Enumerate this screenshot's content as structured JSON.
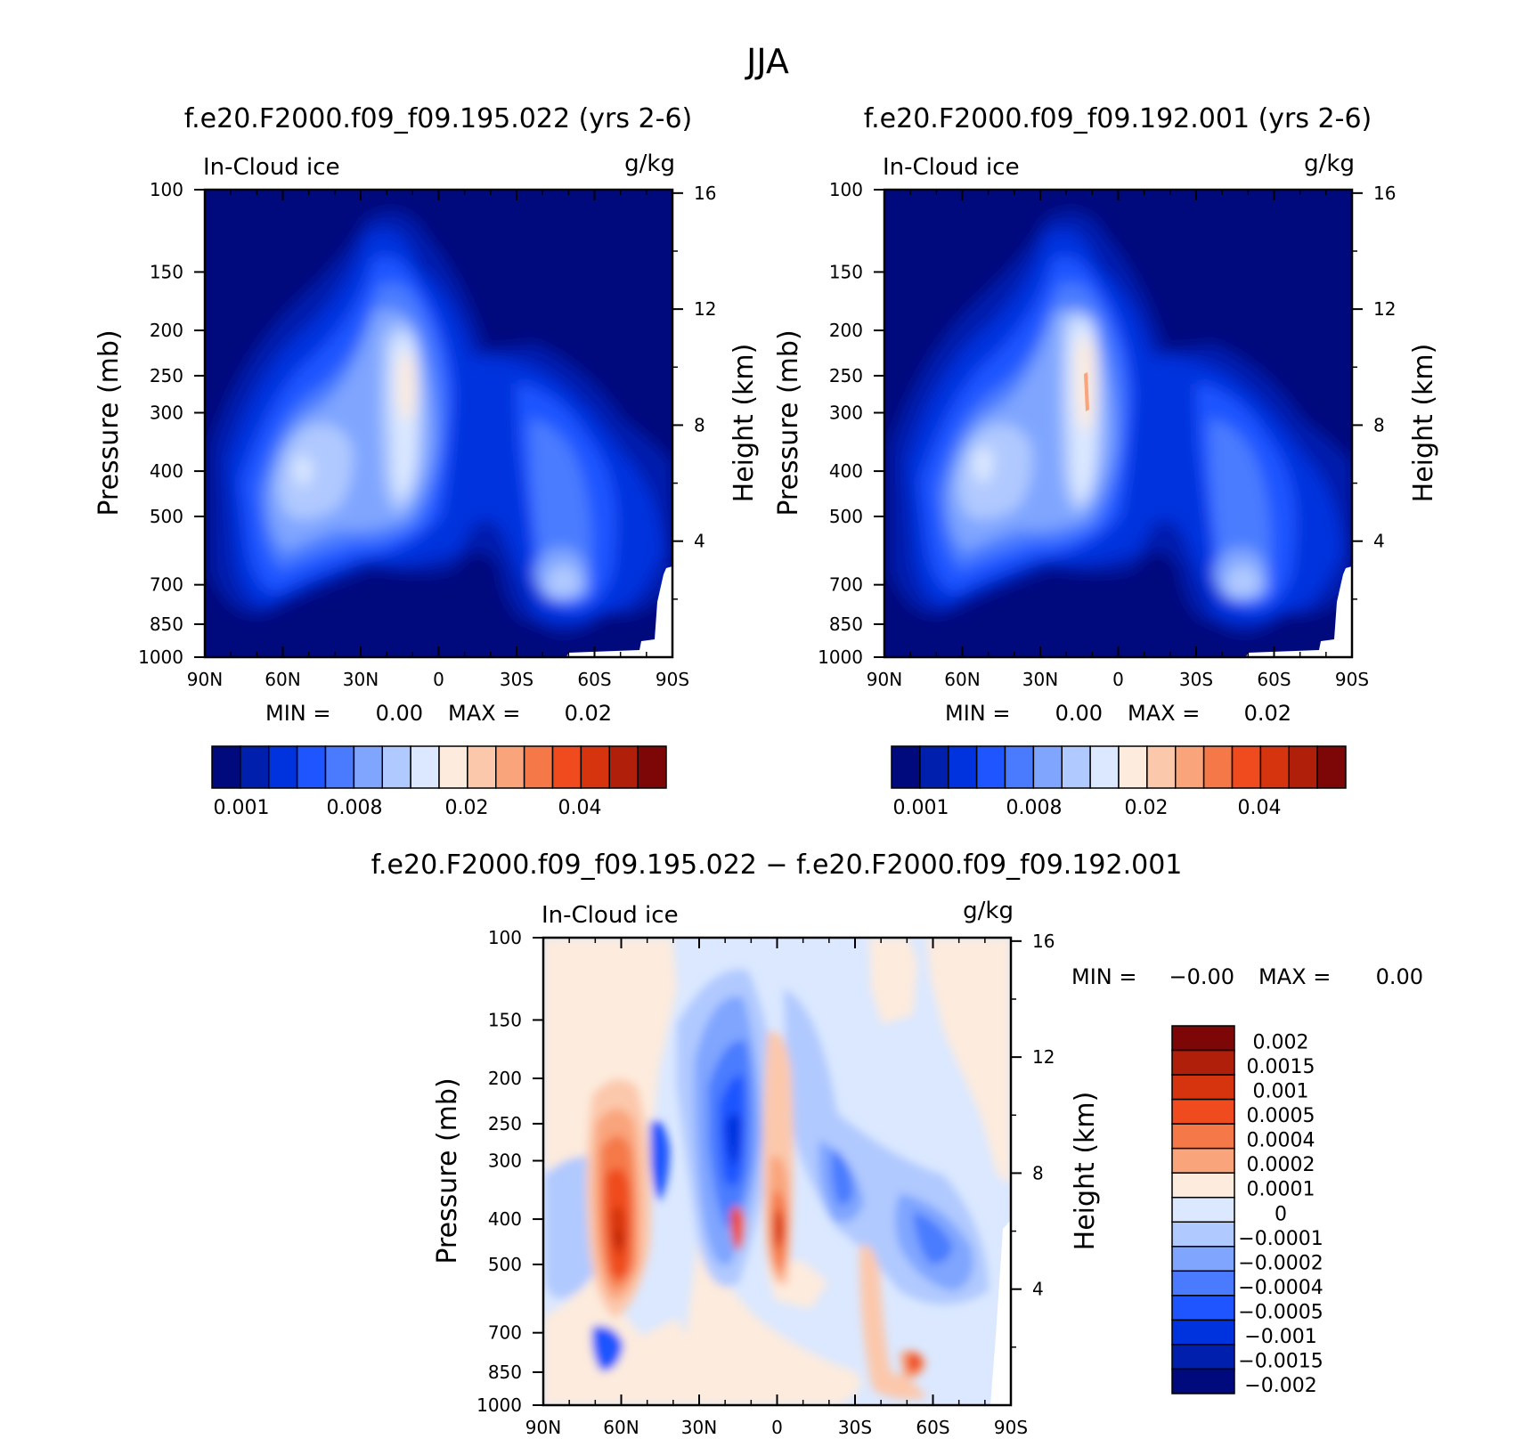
{
  "title": "JJA",
  "colors": {
    "control_levels": [
      "#000a7d",
      "#001fad",
      "#0033dd",
      "#1f55ff",
      "#4a7bff",
      "#7fa5ff",
      "#b0c9ff",
      "#dbe8ff",
      "#fdebdd",
      "#fcc8ac",
      "#f9a47b",
      "#f57948",
      "#ef4b1f",
      "#d5340f",
      "#b01f0a",
      "#7d0707"
    ],
    "diff_levels": [
      "#7d0707",
      "#b01f0a",
      "#d5340f",
      "#ef4b1f",
      "#f57948",
      "#f9a47b",
      "#fdebdd",
      "#dbe8ff",
      "#b0c9ff",
      "#7fa5ff",
      "#4a7bff",
      "#1f55ff",
      "#0033dd",
      "#001fad",
      "#000a7d"
    ]
  },
  "chart_data": [
    {
      "type": "contour",
      "panel": "left",
      "title": "f.e20.F2000.f09_f09.195.022 (yrs 2-6)",
      "field": "In-Cloud ice",
      "units": "g/kg",
      "xlabel": "",
      "ylabel": "Pressure (mb)",
      "y2label": "Height (km)",
      "x_ticks": [
        "90N",
        "60N",
        "30N",
        "0",
        "30S",
        "60S",
        "90S"
      ],
      "y_ticks": [
        "100",
        "150",
        "200",
        "250",
        "300",
        "400",
        "500",
        "700",
        "850",
        "1000"
      ],
      "y2_ticks": [
        "16",
        "12",
        "8",
        "4"
      ],
      "min_label": "MIN =",
      "min_value": "0.00",
      "max_label": "MAX =",
      "max_value": "0.02",
      "colorbar_labels": [
        "0.001",
        "0.008",
        "0.02",
        "0.04"
      ],
      "features": [
        {
          "lat": -12,
          "p": 280,
          "value": 0.02
        },
        {
          "lat": -55,
          "p": 430,
          "value": 0.012
        },
        {
          "lat": 55,
          "p": 740,
          "value": 0.011
        }
      ]
    },
    {
      "type": "contour",
      "panel": "right",
      "title": "f.e20.F2000.f09_f09.192.001 (yrs 2-6)",
      "field": "In-Cloud ice",
      "units": "g/kg",
      "xlabel": "",
      "ylabel": "Pressure (mb)",
      "y2label": "Height (km)",
      "x_ticks": [
        "90N",
        "60N",
        "30N",
        "0",
        "30S",
        "60S",
        "90S"
      ],
      "y_ticks": [
        "100",
        "150",
        "200",
        "250",
        "300",
        "400",
        "500",
        "700",
        "850",
        "1000"
      ],
      "y2_ticks": [
        "16",
        "12",
        "8",
        "4"
      ],
      "min_label": "MIN =",
      "min_value": "0.00",
      "max_label": "MAX =",
      "max_value": "0.02",
      "colorbar_labels": [
        "0.001",
        "0.008",
        "0.02",
        "0.04"
      ],
      "features": [
        {
          "lat": -12,
          "p": 290,
          "value": 0.02
        },
        {
          "lat": -52,
          "p": 420,
          "value": 0.012
        },
        {
          "lat": 52,
          "p": 740,
          "value": 0.011
        }
      ]
    },
    {
      "type": "contour",
      "panel": "difference",
      "title": "f.e20.F2000.f09_f09.195.022 − f.e20.F2000.f09_f09.192.001",
      "field": "In-Cloud ice",
      "units": "g/kg",
      "xlabel": "",
      "ylabel": "Pressure (mb)",
      "y2label": "Height (km)",
      "x_ticks": [
        "90N",
        "60N",
        "30N",
        "0",
        "30S",
        "60S",
        "90S"
      ],
      "y_ticks": [
        "100",
        "150",
        "200",
        "250",
        "300",
        "400",
        "500",
        "700",
        "850",
        "1000"
      ],
      "y2_ticks": [
        "16",
        "12",
        "8",
        "4"
      ],
      "min_label": "MIN =",
      "min_value": "−0.00",
      "max_label": "MAX =",
      "max_value": "0.00",
      "colorbar_labels": [
        "0.002",
        "0.0015",
        "0.001",
        "0.0005",
        "0.0004",
        "0.0002",
        "0.0001",
        "0",
        "−0.0001",
        "−0.0002",
        "−0.0004",
        "−0.0005",
        "−0.001",
        "−0.0015",
        "−0.002"
      ],
      "features": [
        {
          "lat": 60,
          "p": 450,
          "value": 0.002
        },
        {
          "lat": 14,
          "p": 350,
          "value": -0.0015
        },
        {
          "lat": 0,
          "p": 470,
          "value": 0.0015
        },
        {
          "lat": -53,
          "p": 860,
          "value": 0.0015
        },
        {
          "lat": -62,
          "p": 480,
          "value": -0.001
        }
      ]
    }
  ]
}
